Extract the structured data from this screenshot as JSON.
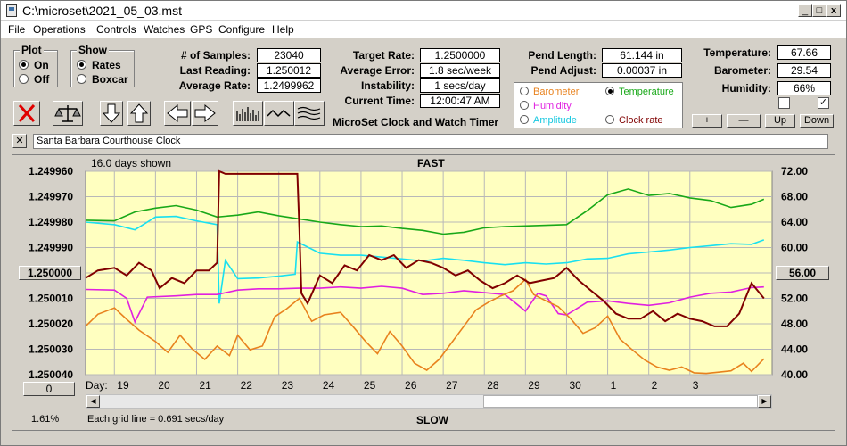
{
  "window": {
    "title": "C:\\microset\\2021_05_03.mst"
  },
  "menu": [
    "File",
    "Operations",
    "Controls",
    "Watches",
    "GPS",
    "Configure",
    "Help"
  ],
  "plot_group": {
    "title": "Plot",
    "on": "On",
    "off": "Off",
    "selected": "On"
  },
  "show_group": {
    "title": "Show",
    "rates": "Rates",
    "boxcar": "Boxcar",
    "selected": "Rates"
  },
  "fields": {
    "samples_label": "# of Samples:",
    "samples": "23040",
    "last_reading_label": "Last Reading:",
    "last_reading": "1.250012",
    "avg_rate_label": "Average Rate:",
    "avg_rate": "1.2499962",
    "target_rate_label": "Target Rate:",
    "target_rate": "1.2500000",
    "avg_error_label": "Average Error:",
    "avg_error": "1.8 sec/week",
    "instability_label": "Instability:",
    "instability": "1 secs/day",
    "current_time_label": "Current Time:",
    "current_time": "12:00:47 AM",
    "pend_length_label": "Pend Length:",
    "pend_length": "61.144 in",
    "pend_adjust_label": "Pend Adjust:",
    "pend_adjust": "0.00037 in",
    "temperature_label": "Temperature:",
    "temperature": "67.66",
    "barometer_label": "Barometer:",
    "barometer": "29.54",
    "humidity_label": "Humidity:",
    "humidity": "66%"
  },
  "app_caption": "MicroSet Clock and Watch Timer",
  "legend": {
    "barometer": "Barometer",
    "temperature": "Temperature",
    "humidity": "Humidity",
    "amplitude": "Amplitude",
    "clock_rate": "Clock rate",
    "selected": "Temperature",
    "colors": {
      "barometer": "#e8821e",
      "temperature": "#18a818",
      "humidity": "#e020e0",
      "amplitude": "#18e0f0",
      "clock_rate": "#800000"
    }
  },
  "side_buttons": {
    "plus": "+",
    "minus": "—",
    "up": "Up",
    "down": "Down"
  },
  "checkboxes": {
    "left_checked": false,
    "right_checked": true
  },
  "clock_name": "Santa Barbara Courthouse Clock",
  "toolbar": [
    "close-x-icon",
    "balance-scale-icon",
    "arrow-down-icon",
    "arrow-up-icon",
    "arrow-left-icon",
    "arrow-right-icon",
    "tick-chart-icon",
    "wave-icon",
    "multi-wave-icon"
  ],
  "chart_labels": {
    "days_shown": "16.0 days shown",
    "fast": "FAST",
    "slow": "SLOW",
    "day": "Day:",
    "grid_note": "Each grid line = 0.691 secs/day",
    "left_value_button": "1.250000",
    "right_value_button": "56.00",
    "bottom_left_button": "0",
    "percent": "1.61%"
  },
  "chart_data": {
    "type": "line",
    "left_axis": {
      "ticks": [
        "1.249960",
        "1.249970",
        "1.249980",
        "1.249990",
        "1.250000",
        "1.250010",
        "1.250020",
        "1.250030",
        "1.250040"
      ],
      "range": [
        1.24996,
        1.25004
      ]
    },
    "right_axis": {
      "ticks": [
        "72.00",
        "68.00",
        "64.00",
        "60.00",
        "56.00",
        "52.00",
        "48.00",
        "44.00",
        "40.00"
      ],
      "range": [
        40,
        72
      ]
    },
    "x": {
      "ticks": [
        "19",
        "20",
        "21",
        "22",
        "23",
        "24",
        "25",
        "26",
        "27",
        "28",
        "29",
        "30",
        "1",
        "2",
        "3"
      ],
      "range": [
        18.3,
        35.0
      ],
      "tick_values": [
        19,
        20,
        21,
        22,
        23,
        24,
        25,
        26,
        27,
        28,
        29,
        30,
        31,
        32,
        33
      ]
    },
    "series": [
      {
        "key": "temperature",
        "axis": "right",
        "points": [
          [
            18.3,
            64.3
          ],
          [
            19,
            64.2
          ],
          [
            19.5,
            65.6
          ],
          [
            20,
            66.2
          ],
          [
            20.5,
            66.6
          ],
          [
            21,
            65.9
          ],
          [
            21.5,
            64.8
          ],
          [
            22,
            65.1
          ],
          [
            22.5,
            65.6
          ],
          [
            23,
            65.0
          ],
          [
            23.5,
            64.5
          ],
          [
            24,
            64.0
          ],
          [
            24.5,
            63.6
          ],
          [
            25,
            63.3
          ],
          [
            25.5,
            63.4
          ],
          [
            26,
            63.0
          ],
          [
            26.5,
            62.7
          ],
          [
            27,
            62.1
          ],
          [
            27.5,
            62.4
          ],
          [
            28,
            63.1
          ],
          [
            28.5,
            63.3
          ],
          [
            29,
            63.4
          ],
          [
            29.5,
            63.5
          ],
          [
            30,
            63.6
          ],
          [
            30.5,
            65.8
          ],
          [
            31,
            68.3
          ],
          [
            31.5,
            69.2
          ],
          [
            32,
            68.2
          ],
          [
            32.5,
            68.5
          ],
          [
            33,
            67.8
          ],
          [
            33.5,
            67.4
          ],
          [
            34,
            66.3
          ],
          [
            34.5,
            66.8
          ],
          [
            34.8,
            67.6
          ]
        ]
      },
      {
        "key": "amplitude",
        "axis": "right",
        "points": [
          [
            18.3,
            64.0
          ],
          [
            19,
            63.6
          ],
          [
            19.5,
            62.8
          ],
          [
            20,
            64.8
          ],
          [
            20.5,
            64.9
          ],
          [
            21,
            64.2
          ],
          [
            21.5,
            63.6
          ],
          [
            21.55,
            51.2
          ],
          [
            21.7,
            58.0
          ],
          [
            22,
            55.1
          ],
          [
            22.5,
            55.2
          ],
          [
            23,
            55.5
          ],
          [
            23.4,
            55.8
          ],
          [
            23.45,
            60.9
          ],
          [
            24,
            59.1
          ],
          [
            24.5,
            58.8
          ],
          [
            25,
            58.8
          ],
          [
            25.5,
            58.5
          ],
          [
            26,
            58.2
          ],
          [
            26.5,
            57.9
          ],
          [
            27,
            58.3
          ],
          [
            27.5,
            58.0
          ],
          [
            28,
            57.6
          ],
          [
            28.5,
            57.3
          ],
          [
            29,
            57.6
          ],
          [
            29.5,
            57.4
          ],
          [
            30,
            57.6
          ],
          [
            30.5,
            58.2
          ],
          [
            31,
            58.3
          ],
          [
            31.5,
            59.0
          ],
          [
            32,
            59.3
          ],
          [
            32.5,
            59.6
          ],
          [
            33,
            60.0
          ],
          [
            33.5,
            60.3
          ],
          [
            34,
            60.6
          ],
          [
            34.5,
            60.5
          ],
          [
            34.8,
            61.2
          ]
        ]
      },
      {
        "key": "humidity",
        "axis": "right",
        "points": [
          [
            18.3,
            53.4
          ],
          [
            19,
            53.3
          ],
          [
            19.3,
            52.0
          ],
          [
            19.5,
            48.3
          ],
          [
            19.8,
            52.2
          ],
          [
            20.5,
            52.4
          ],
          [
            21,
            52.6
          ],
          [
            21.5,
            52.6
          ],
          [
            22,
            53.3
          ],
          [
            22.5,
            53.5
          ],
          [
            23,
            53.5
          ],
          [
            23.5,
            53.6
          ],
          [
            24,
            53.6
          ],
          [
            24.5,
            53.8
          ],
          [
            25,
            53.6
          ],
          [
            25.5,
            53.9
          ],
          [
            26,
            53.6
          ],
          [
            26.5,
            52.6
          ],
          [
            27,
            52.8
          ],
          [
            27.5,
            53.2
          ],
          [
            28,
            52.9
          ],
          [
            28.5,
            52.6
          ],
          [
            29,
            50.0
          ],
          [
            29.3,
            52.8
          ],
          [
            29.5,
            52.4
          ],
          [
            29.8,
            49.6
          ],
          [
            30,
            49.4
          ],
          [
            30.5,
            51.4
          ],
          [
            31,
            51.6
          ],
          [
            31.5,
            51.2
          ],
          [
            32,
            50.9
          ],
          [
            32.5,
            51.3
          ],
          [
            33,
            52.2
          ],
          [
            33.5,
            52.8
          ],
          [
            34,
            53.0
          ],
          [
            34.5,
            53.7
          ],
          [
            34.8,
            53.8
          ]
        ]
      },
      {
        "key": "barometer",
        "axis": "right",
        "points": [
          [
            18.3,
            47.6
          ],
          [
            18.6,
            49.5
          ],
          [
            19,
            50.5
          ],
          [
            19.3,
            48.7
          ],
          [
            19.6,
            47.0
          ],
          [
            20,
            45.2
          ],
          [
            20.3,
            43.5
          ],
          [
            20.6,
            46.2
          ],
          [
            20.9,
            44.0
          ],
          [
            21.2,
            42.4
          ],
          [
            21.5,
            44.5
          ],
          [
            21.8,
            43.0
          ],
          [
            22,
            46.2
          ],
          [
            22.3,
            43.9
          ],
          [
            22.6,
            44.5
          ],
          [
            22.9,
            49.1
          ],
          [
            23.2,
            50.4
          ],
          [
            23.5,
            52.0
          ],
          [
            23.8,
            48.4
          ],
          [
            24.1,
            49.4
          ],
          [
            24.5,
            49.8
          ],
          [
            24.8,
            47.6
          ],
          [
            25.1,
            45.3
          ],
          [
            25.4,
            43.3
          ],
          [
            25.7,
            46.8
          ],
          [
            26,
            44.5
          ],
          [
            26.3,
            41.8
          ],
          [
            26.6,
            40.7
          ],
          [
            26.9,
            42.4
          ],
          [
            27.2,
            45.0
          ],
          [
            27.5,
            47.6
          ],
          [
            27.8,
            50.2
          ],
          [
            28.1,
            51.4
          ],
          [
            28.4,
            52.4
          ],
          [
            28.7,
            53.2
          ],
          [
            29,
            55.0
          ],
          [
            29.2,
            52.6
          ],
          [
            29.5,
            51.6
          ],
          [
            29.8,
            50.7
          ],
          [
            30.1,
            48.8
          ],
          [
            30.4,
            46.5
          ],
          [
            30.7,
            47.4
          ],
          [
            31,
            49.2
          ],
          [
            31.3,
            45.6
          ],
          [
            31.6,
            43.9
          ],
          [
            31.9,
            42.3
          ],
          [
            32.2,
            41.2
          ],
          [
            32.5,
            40.7
          ],
          [
            32.8,
            41.2
          ],
          [
            33.1,
            40.3
          ],
          [
            33.4,
            40.2
          ],
          [
            33.7,
            40.4
          ],
          [
            34,
            40.6
          ],
          [
            34.3,
            41.8
          ],
          [
            34.5,
            40.5
          ],
          [
            34.8,
            42.5
          ]
        ]
      },
      {
        "key": "clock_rate",
        "axis": "left",
        "points": [
          [
            18.3,
            1.250002
          ],
          [
            18.6,
            1.249999
          ],
          [
            19,
            1.249998
          ],
          [
            19.3,
            1.250001
          ],
          [
            19.6,
            1.249996
          ],
          [
            19.9,
            1.249999
          ],
          [
            20.1,
            1.250006
          ],
          [
            20.4,
            1.250002
          ],
          [
            20.7,
            1.250004
          ],
          [
            21,
            1.249999
          ],
          [
            21.3,
            1.249999
          ],
          [
            21.5,
            1.249996
          ],
          [
            21.55,
            1.249957
          ],
          [
            21.7,
            1.249961
          ],
          [
            22.0,
            1.249961
          ],
          [
            22.5,
            1.249961
          ],
          [
            23.0,
            1.249961
          ],
          [
            23.45,
            1.249961
          ],
          [
            23.5,
            1.249983
          ],
          [
            23.55,
            1.250008
          ],
          [
            23.7,
            1.250012
          ],
          [
            24,
            1.250001
          ],
          [
            24.3,
            1.250004
          ],
          [
            24.6,
            1.249997
          ],
          [
            24.9,
            1.249999
          ],
          [
            25.2,
            1.249993
          ],
          [
            25.5,
            1.249995
          ],
          [
            25.8,
            1.249993
          ],
          [
            26.1,
            1.249998
          ],
          [
            26.4,
            1.249995
          ],
          [
            26.7,
            1.249996
          ],
          [
            27,
            1.249998
          ],
          [
            27.3,
            1.250001
          ],
          [
            27.6,
            1.249999
          ],
          [
            27.9,
            1.250003
          ],
          [
            28.2,
            1.250006
          ],
          [
            28.5,
            1.250004
          ],
          [
            28.8,
            1.250001
          ],
          [
            29.1,
            1.250004
          ],
          [
            29.4,
            1.250003
          ],
          [
            29.7,
            1.250002
          ],
          [
            30,
            1.249998
          ],
          [
            30.3,
            1.250003
          ],
          [
            30.6,
            1.250007
          ],
          [
            30.9,
            1.250011
          ],
          [
            31.2,
            1.250016
          ],
          [
            31.5,
            1.250018
          ],
          [
            31.8,
            1.250018
          ],
          [
            32.1,
            1.250015
          ],
          [
            32.4,
            1.250019
          ],
          [
            32.7,
            1.250016
          ],
          [
            33,
            1.250018
          ],
          [
            33.3,
            1.250019
          ],
          [
            33.6,
            1.250021
          ],
          [
            33.9,
            1.250021
          ],
          [
            34.2,
            1.250016
          ],
          [
            34.5,
            1.250004
          ],
          [
            34.8,
            1.25001
          ]
        ]
      }
    ]
  }
}
